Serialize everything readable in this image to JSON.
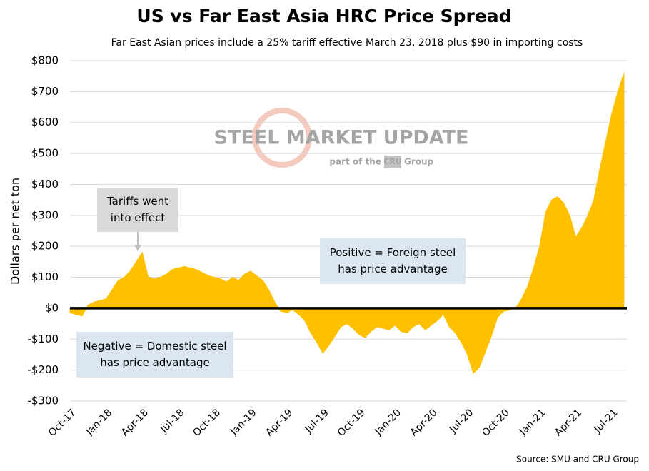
{
  "chart_data": {
    "type": "area",
    "title": "US vs Far East Asia HRC Price Spread",
    "subtitle": "Far East Asian prices include a 25% tariff effective March 23, 2018 plus $90 in importing costs",
    "y_label": "Dollars per net ton",
    "source": "Source: SMU and CRU Group",
    "watermark": {
      "brand": "STEEL MARKET UPDATE",
      "prefix": "part of the",
      "badge": "CRU",
      "suffix": "Group"
    },
    "annotations": [
      {
        "lines": [
          "Tariffs went",
          "into effect"
        ]
      },
      {
        "lines": [
          "Positive = Foreign steel",
          "has price advantage"
        ]
      },
      {
        "lines": [
          "Negative = Domestic steel",
          "has price advantage"
        ]
      }
    ],
    "color": "#ffc000",
    "categories": [
      "Oct-17",
      null,
      null,
      null,
      null,
      null,
      "Jan-18",
      null,
      null,
      null,
      null,
      null,
      "Apr-18",
      null,
      null,
      null,
      null,
      null,
      "Jul-18",
      null,
      null,
      null,
      null,
      null,
      "Oct-18",
      null,
      null,
      null,
      null,
      null,
      "Jan-19",
      null,
      null,
      null,
      null,
      null,
      "Apr-19",
      null,
      null,
      null,
      null,
      null,
      "Jul-19",
      null,
      null,
      null,
      null,
      null,
      "Oct-19",
      null,
      null,
      null,
      null,
      null,
      "Jan-20",
      null,
      null,
      null,
      null,
      null,
      "Apr-20",
      null,
      null,
      null,
      null,
      null,
      "Jul-20",
      null,
      null,
      null,
      null,
      null,
      "Oct-20",
      null,
      null,
      null,
      null,
      null,
      "Jan-21",
      null,
      null,
      null,
      null,
      null,
      "Apr-21",
      null,
      null,
      null,
      null,
      null,
      "Jul-21",
      null,
      null
    ],
    "values": [
      -15,
      -20,
      -25,
      10,
      20,
      25,
      30,
      60,
      90,
      100,
      120,
      150,
      180,
      100,
      95,
      100,
      110,
      125,
      130,
      135,
      130,
      125,
      115,
      105,
      100,
      95,
      85,
      100,
      90,
      110,
      120,
      105,
      90,
      60,
      20,
      -10,
      -15,
      -5,
      -20,
      -40,
      -80,
      -110,
      -145,
      -120,
      -90,
      -60,
      -50,
      -65,
      -85,
      -95,
      -75,
      -60,
      -65,
      -70,
      -55,
      -75,
      -80,
      -60,
      -50,
      -70,
      -55,
      -40,
      -20,
      -60,
      -80,
      -110,
      -150,
      -210,
      -190,
      -140,
      -90,
      -30,
      -10,
      -5,
      0,
      30,
      70,
      130,
      200,
      310,
      350,
      360,
      340,
      300,
      230,
      260,
      300,
      350,
      450,
      540,
      630,
      700,
      760
    ],
    "ylim": [
      -300,
      800
    ],
    "yticks": [
      {
        "value": -300,
        "label": "-$300"
      },
      {
        "value": -200,
        "label": "-$200"
      },
      {
        "value": -100,
        "label": "-$100"
      },
      {
        "value": 0,
        "label": "$0"
      },
      {
        "value": 100,
        "label": "$100"
      },
      {
        "value": 200,
        "label": "$200"
      },
      {
        "value": 300,
        "label": "$300"
      },
      {
        "value": 400,
        "label": "$400"
      },
      {
        "value": 500,
        "label": "$500"
      },
      {
        "value": 600,
        "label": "$600"
      },
      {
        "value": 700,
        "label": "$700"
      },
      {
        "value": 800,
        "label": "$800"
      }
    ],
    "grid": true
  }
}
